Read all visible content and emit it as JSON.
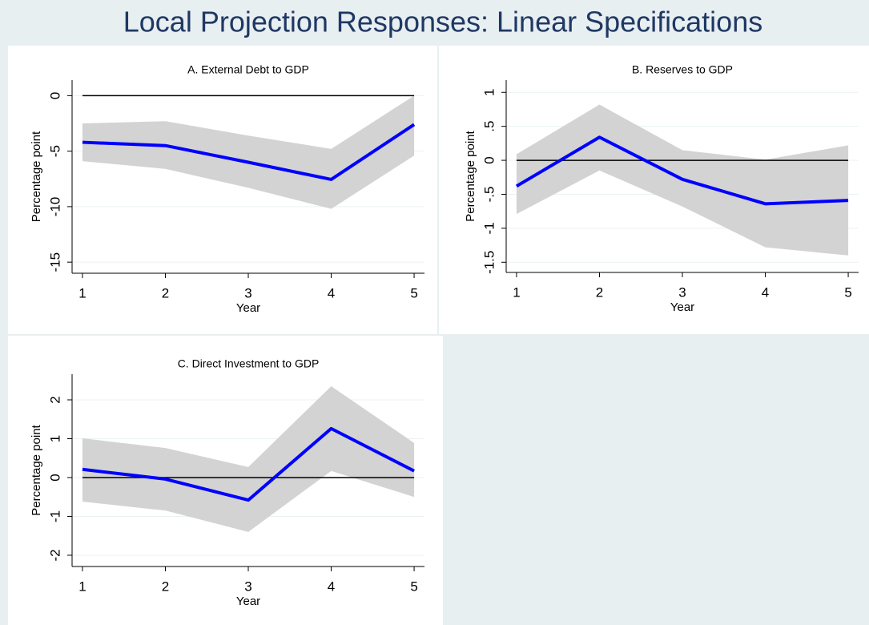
{
  "title": "Local Projection Responses: Linear Specifications",
  "chart_data": [
    {
      "type": "line",
      "title": "A. External Debt to GDP",
      "xlabel": "Year",
      "ylabel": "Percentage point",
      "x": [
        1,
        2,
        3,
        4,
        5
      ],
      "xlim": [
        0.875,
        5.125
      ],
      "xticks": [
        1,
        2,
        3,
        4,
        5
      ],
      "ylim": [
        -16,
        1.4
      ],
      "yticks": [
        0,
        -5,
        -10,
        -15
      ],
      "grid": true,
      "refline": 0,
      "color": "#0000ff",
      "values": [
        -4.2,
        -4.5,
        -6.0,
        -7.55,
        -2.6
      ],
      "band": {
        "color": "#d3d3d3",
        "upper": [
          -2.5,
          -2.3,
          -3.6,
          -4.8,
          0
        ],
        "lower": [
          -5.9,
          -6.6,
          -8.3,
          -10.2,
          -5.4
        ]
      }
    },
    {
      "type": "line",
      "title": "B. Reserves to GDP",
      "xlabel": "Year",
      "ylabel": "Percentage point",
      "x": [
        1,
        2,
        3,
        4,
        5
      ],
      "xlim": [
        0.875,
        5.125
      ],
      "xticks": [
        1,
        2,
        3,
        4,
        5
      ],
      "ylim": [
        -1.65,
        1.18
      ],
      "yticks": [
        1,
        {
          "value": 0.5,
          "label": ".5"
        },
        0,
        {
          "value": -0.5,
          "label": "-.5"
        },
        -1,
        -1.5
      ],
      "grid": true,
      "refline": 0,
      "color": "#0000ff",
      "values": [
        -0.38,
        0.34,
        -0.28,
        -0.64,
        -0.59
      ],
      "band": {
        "color": "#d3d3d3",
        "upper": [
          0.09,
          0.82,
          0.15,
          0.01,
          0.22
        ],
        "lower": [
          -0.79,
          -0.15,
          -0.68,
          -1.28,
          -1.4
        ]
      }
    },
    {
      "type": "line",
      "title": "C. Direct Investment to GDP",
      "xlabel": "Year",
      "ylabel": "Percentage point",
      "x": [
        1,
        2,
        3,
        4,
        5
      ],
      "xlim": [
        0.875,
        5.125
      ],
      "xticks": [
        1,
        2,
        3,
        4,
        5
      ],
      "ylim": [
        -2.29,
        2.66
      ],
      "yticks": [
        2,
        1,
        0,
        -1,
        -2
      ],
      "grid": true,
      "refline": 0,
      "color": "#0000ff",
      "values": [
        0.21,
        -0.04,
        -0.58,
        1.26,
        0.17
      ],
      "band": {
        "color": "#d3d3d3",
        "upper": [
          1.01,
          0.76,
          0.27,
          2.35,
          0.89
        ],
        "lower": [
          -0.62,
          -0.85,
          -1.4,
          0.17,
          -0.5
        ]
      }
    }
  ]
}
